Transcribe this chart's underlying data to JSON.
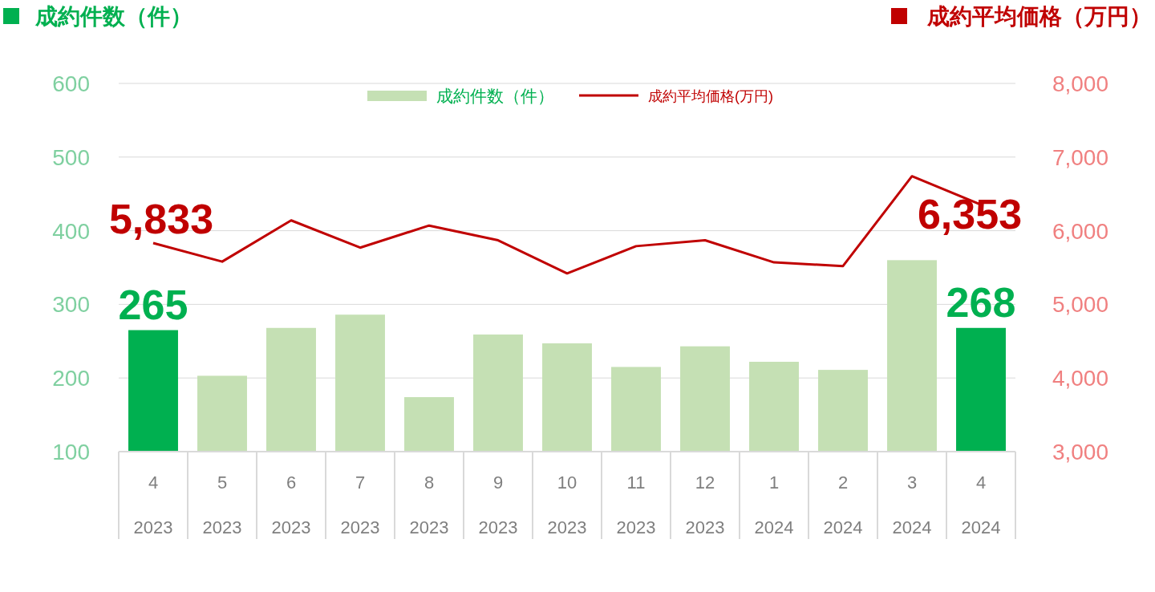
{
  "chart_data": {
    "type": "bar",
    "ylabel": "成約件数（件）",
    "y2label": "成約平均価格（万円）",
    "categories": [
      "4\n2023",
      "5\n2023",
      "6\n2023",
      "7\n2023",
      "8\n2023",
      "9\n2023",
      "10\n2023",
      "11\n2023",
      "12\n2023",
      "1\n2024",
      "2\n2024",
      "3\n2024",
      "4\n2024"
    ],
    "ylim": [
      100,
      600
    ],
    "yticks": [
      100,
      200,
      300,
      400,
      500,
      600
    ],
    "y2lim": [
      3000,
      8000
    ],
    "y2ticks": [
      {
        "value": 3000,
        "label": "3,000"
      },
      {
        "value": 4000,
        "label": "4,000"
      },
      {
        "value": 5000,
        "label": "5,000"
      },
      {
        "value": 6000,
        "label": "6,000"
      },
      {
        "value": 7000,
        "label": "7,000"
      },
      {
        "value": 8000,
        "label": "8,000"
      }
    ],
    "grid": "y",
    "legend": "top",
    "series": [
      {
        "name": "成約件数（件）",
        "color": "#c5e0b4",
        "colors": [
          "#00b050",
          "#c5e0b4",
          "#c5e0b4",
          "#c5e0b4",
          "#c5e0b4",
          "#c5e0b4",
          "#c5e0b4",
          "#c5e0b4",
          "#c5e0b4",
          "#c5e0b4",
          "#c5e0b4",
          "#c5e0b4",
          "#00b050"
        ],
        "values": [
          265,
          203,
          268,
          286,
          174,
          259,
          247,
          215,
          243,
          222,
          211,
          360,
          268
        ],
        "value_labels": [
          "265",
          null,
          null,
          null,
          null,
          null,
          null,
          null,
          null,
          null,
          null,
          null,
          "268"
        ]
      },
      {
        "name": "成約平均価格(万円)",
        "type": "line",
        "axis": "y2",
        "color": "#c00000",
        "values": [
          5833,
          5580,
          6140,
          5770,
          6070,
          5870,
          5420,
          5790,
          5870,
          5570,
          5520,
          6740,
          6353
        ],
        "value_labels": [
          "5,833",
          null,
          null,
          null,
          null,
          null,
          null,
          null,
          null,
          null,
          null,
          null,
          "6,353"
        ]
      }
    ]
  }
}
